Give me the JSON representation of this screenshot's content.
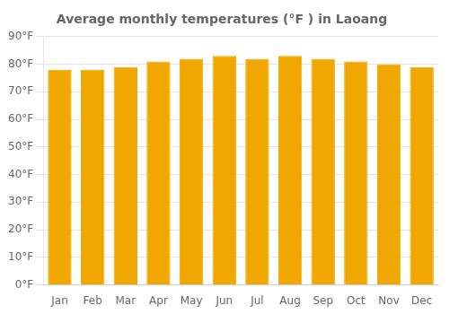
{
  "chart_data": {
    "type": "bar",
    "title": "Average monthly temperatures (°F ) in Laoang",
    "categories": [
      "Jan",
      "Feb",
      "Mar",
      "Apr",
      "May",
      "Jun",
      "Jul",
      "Aug",
      "Sep",
      "Oct",
      "Nov",
      "Dec"
    ],
    "values": [
      78,
      78,
      79,
      81,
      82,
      83,
      82,
      83,
      82,
      81,
      80,
      79
    ],
    "color": "#F0A800",
    "ylim": [
      0,
      90
    ],
    "yticks": [
      {
        "value": 0,
        "label": "0°F"
      },
      {
        "value": 10,
        "label": "10°F"
      },
      {
        "value": 20,
        "label": "20°F"
      },
      {
        "value": 30,
        "label": "30°F"
      },
      {
        "value": 40,
        "label": "40°F"
      },
      {
        "value": 50,
        "label": "50°F"
      },
      {
        "value": 60,
        "label": "60°F"
      },
      {
        "value": 70,
        "label": "70°F"
      },
      {
        "value": 80,
        "label": "80°F"
      },
      {
        "value": 90,
        "label": "90°F"
      }
    ],
    "grid": true
  }
}
